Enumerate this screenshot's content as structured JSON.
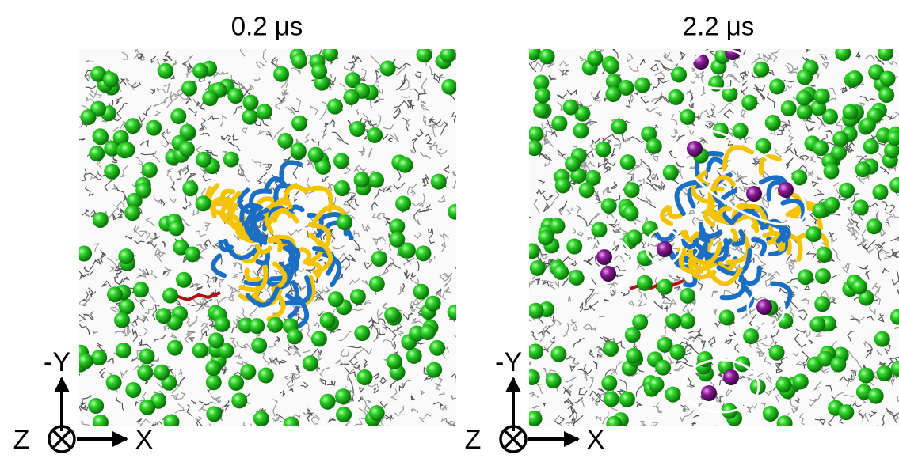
{
  "panels": [
    {
      "title": "0.2 μs",
      "axes": {
        "y": "-Y",
        "x": "X",
        "z": "Z"
      }
    },
    {
      "title": "2.2 μs",
      "axes": {
        "y": "-Y",
        "x": "X",
        "z": "Z"
      }
    }
  ]
}
